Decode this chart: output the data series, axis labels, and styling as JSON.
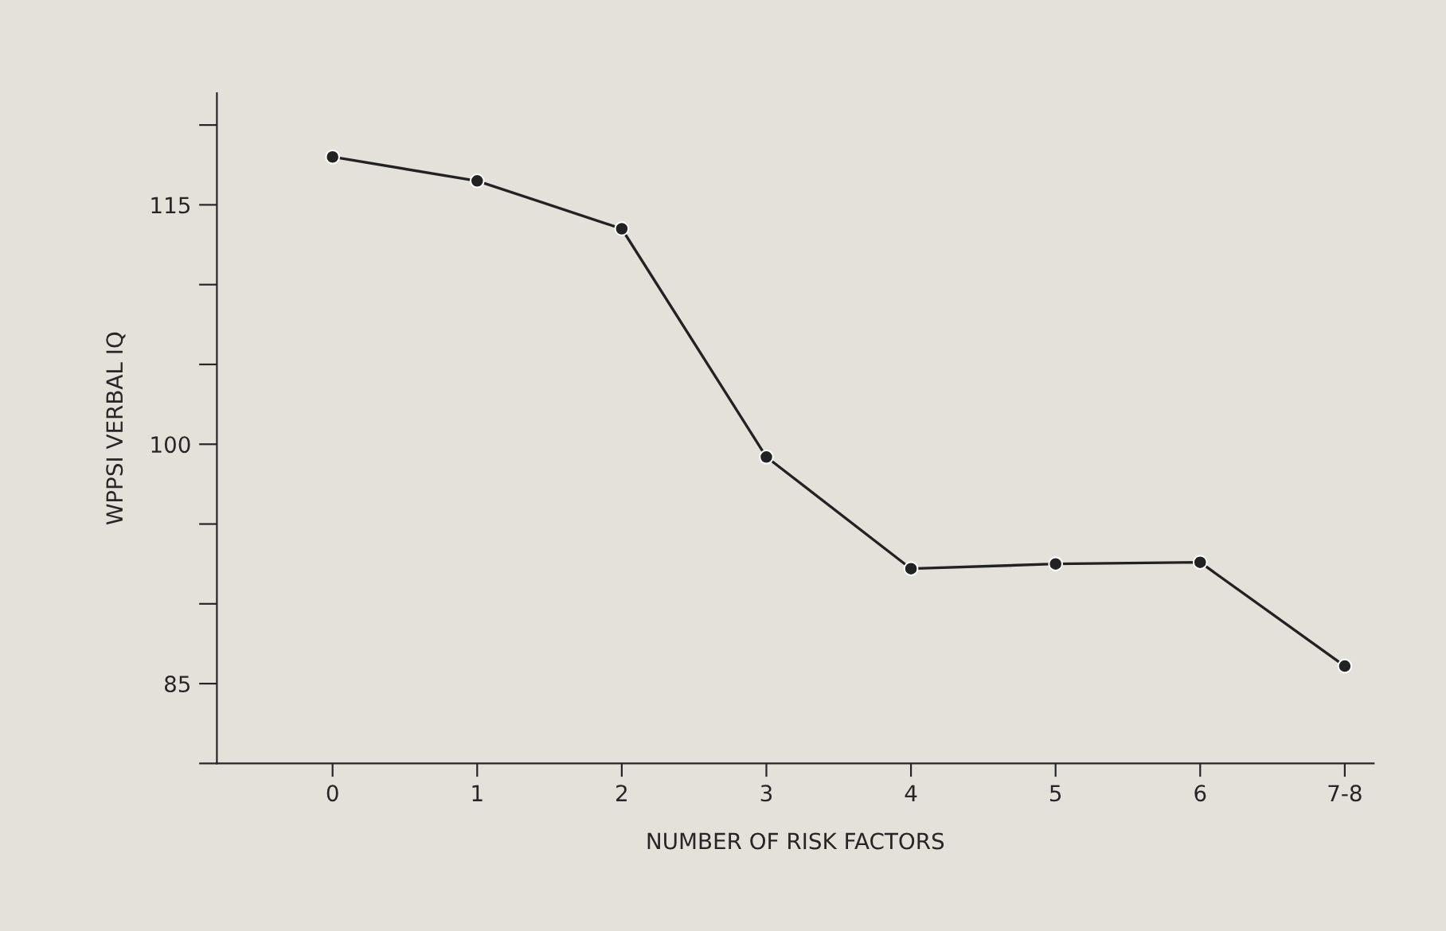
{
  "chart_data": {
    "type": "line",
    "xlabel": "NUMBER OF RISK FACTORS",
    "ylabel": "WPPSI VERBAL IQ",
    "categories": [
      "0",
      "1",
      "2",
      "3",
      "4",
      "5",
      "6",
      "7-8"
    ],
    "series": [
      {
        "color": "#222222",
        "values": [
          118,
          116.5,
          113.5,
          99.2,
          92.2,
          92.5,
          92.6,
          86.1
        ]
      }
    ],
    "ylim": [
      80,
      122
    ],
    "yticks": [
      {
        "value": 80,
        "label": null
      },
      85,
      {
        "value": 90,
        "label": null
      },
      {
        "value": 95,
        "label": null
      },
      100,
      {
        "value": 105,
        "label": null
      },
      {
        "value": 110,
        "label": null
      },
      115,
      {
        "value": 120,
        "label": null
      }
    ],
    "marker": "circle",
    "line_style": "solid",
    "grid": false
  }
}
